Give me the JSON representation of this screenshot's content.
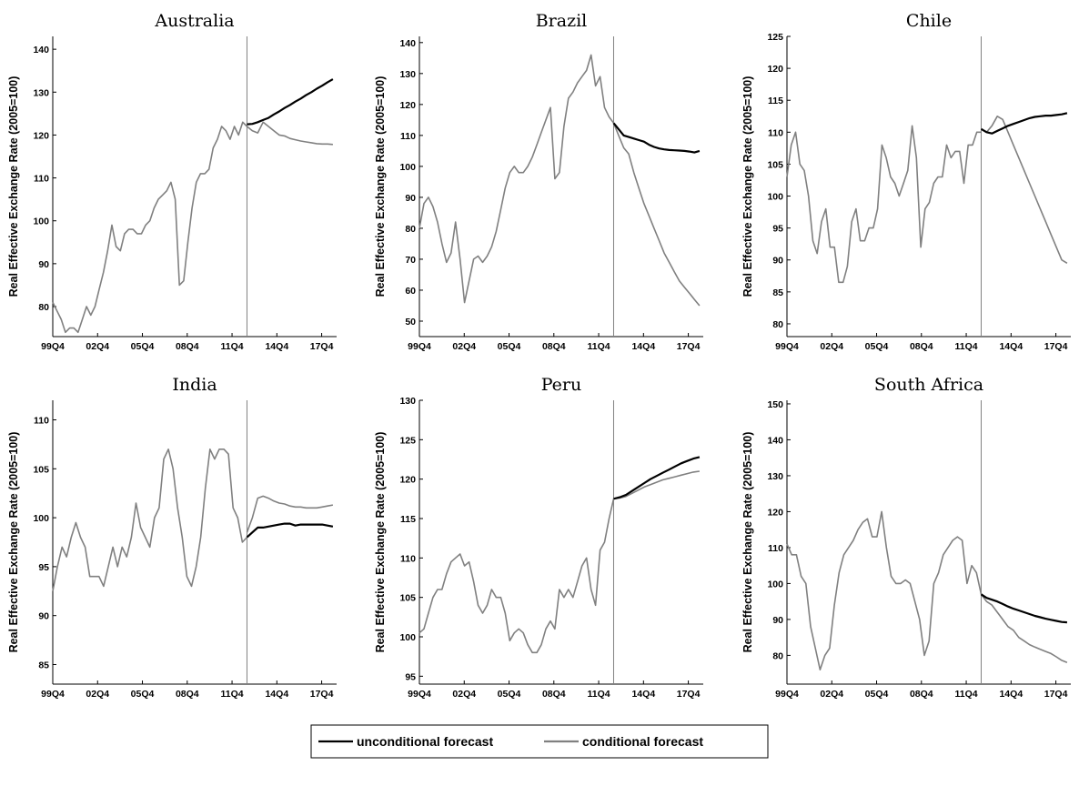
{
  "chart_data": [
    {
      "type": "line",
      "title": "Australia",
      "ylabel": "Real Effective Exchange Rate (2005=100)",
      "xticks": [
        "99Q4",
        "02Q4",
        "05Q4",
        "08Q4",
        "11Q4",
        "14Q4",
        "17Q4"
      ],
      "yticks": [
        80,
        90,
        100,
        110,
        120,
        130,
        140
      ],
      "ylim": [
        73,
        143
      ],
      "forecast_start": "12Q4",
      "historical": [
        81,
        79,
        77,
        74,
        75,
        75,
        74,
        77,
        80,
        78,
        80,
        84,
        88,
        93,
        99,
        94,
        93,
        97,
        98,
        98,
        97,
        97,
        99,
        100,
        103,
        105,
        106,
        107,
        109,
        105,
        85,
        86,
        95,
        103,
        109,
        111,
        111,
        112,
        117,
        119,
        122,
        121,
        119,
        122,
        120,
        123,
        122
      ],
      "series": [
        {
          "name": "unconditional forecast",
          "color": "#000000",
          "values": [
            122.5,
            122.6,
            123,
            123.5,
            124,
            124.8,
            125.5,
            126.3,
            127,
            127.8,
            128.5,
            129.3,
            130,
            130.8,
            131.5,
            132.3,
            133
          ]
        },
        {
          "name": "conditional forecast",
          "color": "#808080",
          "values": [
            122,
            121,
            120.5,
            123,
            122,
            121,
            120,
            119.8,
            119.2,
            118.9,
            118.6,
            118.4,
            118.2,
            118,
            117.9,
            117.9,
            117.8
          ]
        }
      ]
    },
    {
      "type": "line",
      "title": "Brazil",
      "ylabel": "Real Effective Exchange Rate (2005=100)",
      "xticks": [
        "99Q4",
        "02Q4",
        "05Q4",
        "08Q4",
        "11Q4",
        "14Q4",
        "17Q4"
      ],
      "yticks": [
        50,
        60,
        70,
        80,
        90,
        100,
        110,
        120,
        130,
        140
      ],
      "ylim": [
        45,
        142
      ],
      "forecast_start": "12Q4",
      "historical": [
        80,
        88,
        90,
        87,
        82,
        75,
        69,
        72,
        82,
        70,
        56,
        63,
        70,
        71,
        69,
        71,
        74,
        79,
        86,
        93,
        98,
        100,
        98,
        98,
        100,
        103,
        107,
        111,
        115,
        119,
        96,
        98,
        113,
        122,
        124,
        127,
        129,
        131,
        136,
        126,
        129,
        119,
        116,
        114
      ],
      "series": [
        {
          "name": "unconditional forecast",
          "color": "#000000",
          "values": [
            114,
            112,
            110,
            109.5,
            109,
            108.5,
            108,
            107,
            106.3,
            105.8,
            105.5,
            105.3,
            105.2,
            105.1,
            105,
            104.8,
            104.5,
            105
          ]
        },
        {
          "name": "conditional forecast",
          "color": "#808080",
          "values": [
            114,
            110,
            106,
            104,
            98,
            93,
            88,
            84,
            80,
            76,
            72,
            69,
            66,
            63,
            61,
            59,
            57,
            55
          ]
        }
      ]
    },
    {
      "type": "line",
      "title": "Chile",
      "ylabel": "Real Effective Exchange Rate (2005=100)",
      "xticks": [
        "99Q4",
        "02Q4",
        "05Q4",
        "08Q4",
        "11Q4",
        "14Q4",
        "17Q4"
      ],
      "yticks": [
        80,
        85,
        90,
        95,
        100,
        105,
        110,
        115,
        120,
        125
      ],
      "ylim": [
        78,
        125
      ],
      "forecast_start": "12Q4",
      "historical": [
        103,
        108,
        110,
        105,
        104,
        100,
        93,
        91,
        96,
        98,
        92,
        92,
        86.5,
        86.5,
        89,
        96,
        98,
        93,
        93,
        95,
        95,
        98,
        108,
        106,
        103,
        102,
        100,
        102,
        104,
        111,
        106,
        92,
        98,
        99,
        102,
        103,
        103,
        108,
        106,
        107,
        107,
        102,
        108,
        108,
        110,
        110
      ],
      "series": [
        {
          "name": "unconditional forecast",
          "color": "#000000",
          "values": [
            110.5,
            110,
            109.8,
            110.2,
            110.6,
            111,
            111.3,
            111.6,
            111.9,
            112.2,
            112.4,
            112.5,
            112.6,
            112.6,
            112.7,
            112.8,
            113
          ]
        },
        {
          "name": "conditional forecast",
          "color": "#808080",
          "values": [
            110.5,
            110,
            111,
            112.5,
            112,
            110,
            108,
            106,
            104,
            102,
            100,
            98,
            96,
            94,
            92,
            90,
            89.5
          ]
        }
      ]
    },
    {
      "type": "line",
      "title": "India",
      "ylabel": "Real Effective Exchange Rate (2005=100)",
      "xticks": [
        "99Q4",
        "02Q4",
        "05Q4",
        "08Q4",
        "11Q4",
        "14Q4",
        "17Q4"
      ],
      "yticks": [
        85,
        90,
        95,
        100,
        105,
        110
      ],
      "ylim": [
        83,
        112
      ],
      "forecast_start": "12Q4",
      "historical": [
        92.5,
        95,
        97,
        96,
        98,
        99.5,
        98,
        97,
        94,
        94,
        94,
        93,
        95,
        97,
        95,
        97,
        96,
        98,
        101.5,
        99,
        98,
        97,
        100,
        101,
        106,
        107,
        105,
        101,
        98,
        94,
        93,
        95,
        98,
        103,
        107,
        106,
        107,
        107,
        106.5,
        101,
        100,
        97.5,
        98
      ],
      "series": [
        {
          "name": "unconditional forecast",
          "color": "#000000",
          "values": [
            98,
            98.5,
            99,
            99,
            99.1,
            99.2,
            99.3,
            99.4,
            99.4,
            99.2,
            99.3,
            99.3,
            99.3,
            99.3,
            99.3,
            99.2,
            99.1
          ]
        },
        {
          "name": "conditional forecast",
          "color": "#808080",
          "values": [
            98.5,
            100,
            102,
            102.2,
            102,
            101.7,
            101.5,
            101.4,
            101.2,
            101.1,
            101.1,
            101,
            101,
            101,
            101.1,
            101.2,
            101.3
          ]
        }
      ]
    },
    {
      "type": "line",
      "title": "Peru",
      "ylabel": "Real Effective Exchange Rate (2005=100)",
      "xticks": [
        "99Q4",
        "02Q4",
        "05Q4",
        "08Q4",
        "11Q4",
        "14Q4",
        "17Q4"
      ],
      "yticks": [
        95,
        100,
        105,
        110,
        115,
        120,
        125,
        130
      ],
      "ylim": [
        94,
        130
      ],
      "forecast_start": "12Q4",
      "historical": [
        100.5,
        101,
        103,
        105,
        106,
        106,
        108,
        109.5,
        110,
        110.5,
        109,
        109.5,
        107,
        104,
        103,
        104,
        106,
        105,
        105,
        103,
        99.5,
        100.5,
        101,
        100.5,
        99,
        98,
        98,
        99,
        101,
        102,
        101,
        106,
        105,
        106,
        105,
        107,
        109,
        110,
        106,
        104,
        111,
        112,
        115,
        117.5
      ],
      "series": [
        {
          "name": "unconditional forecast",
          "color": "#000000",
          "values": [
            117.5,
            117.7,
            118,
            118.5,
            119,
            119.5,
            120,
            120.4,
            120.8,
            121.2,
            121.6,
            122,
            122.3,
            122.6,
            122.8
          ]
        },
        {
          "name": "conditional forecast",
          "color": "#808080",
          "values": [
            117.5,
            117.6,
            117.8,
            118.2,
            118.6,
            119,
            119.3,
            119.6,
            119.9,
            120.1,
            120.3,
            120.5,
            120.7,
            120.9,
            121
          ]
        }
      ]
    },
    {
      "type": "line",
      "title": "South Africa",
      "ylabel": "Real Effective Exchange Rate (2005=100)",
      "xticks": [
        "99Q4",
        "02Q4",
        "05Q4",
        "08Q4",
        "11Q4",
        "14Q4",
        "17Q4"
      ],
      "yticks": [
        80,
        90,
        100,
        110,
        120,
        130,
        140,
        150
      ],
      "ylim": [
        72,
        151
      ],
      "forecast_start": "12Q4",
      "historical": [
        111,
        108,
        108,
        102,
        100,
        88,
        82,
        76,
        80,
        82,
        94,
        103,
        108,
        110,
        112,
        115,
        117,
        118,
        113,
        113,
        120,
        110,
        102,
        100,
        100,
        101,
        100,
        95,
        90,
        80,
        84,
        100,
        103,
        108,
        110,
        112,
        113,
        112,
        100,
        105,
        103,
        97
      ],
      "series": [
        {
          "name": "unconditional forecast",
          "color": "#000000",
          "values": [
            97,
            96,
            95.5,
            95,
            94.3,
            93.6,
            93,
            92.5,
            92,
            91.5,
            91,
            90.6,
            90.2,
            89.9,
            89.6,
            89.3,
            89.2
          ]
        },
        {
          "name": "conditional forecast",
          "color": "#808080",
          "values": [
            97,
            95,
            94,
            92,
            90,
            88,
            87,
            85,
            84,
            83,
            82.3,
            81.7,
            81.1,
            80.5,
            79.6,
            78.6,
            78
          ]
        }
      ]
    }
  ],
  "legend": [
    {
      "label": "unconditional forecast",
      "color": "#000000"
    },
    {
      "label": "conditional forecast",
      "color": "#808080"
    }
  ]
}
